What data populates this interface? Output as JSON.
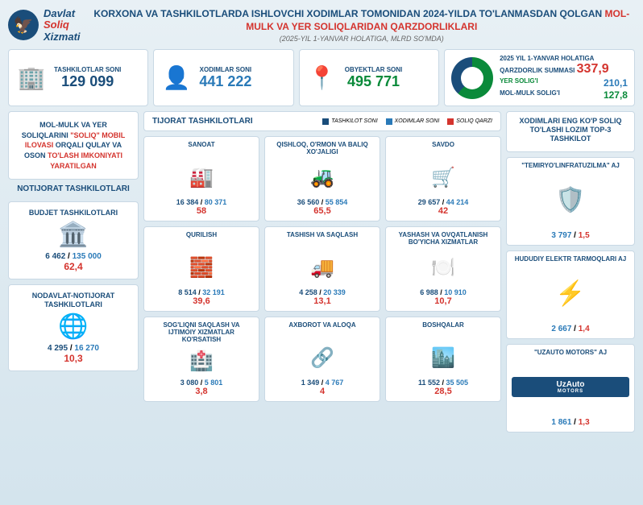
{
  "header": {
    "org_line1": "Davlat",
    "org_line2": "Soliq",
    "org_line3": "Xizmati",
    "title_part1": "KORXONA VA TASHKILOTLARDA ISHLOVCHI XODIMLAR TOMONIDAN 2024-YILDA TO'LANMASDAN QOLGAN ",
    "title_highlight": "MOL-MULK VA YER SOLIQLARIDAN QARZDORLIKLARI",
    "subtitle": "(2025-YIL 1-YANVAR HOLATIGA, MLRD SO'MDA)"
  },
  "top": {
    "c1": {
      "label": "TASHKILOTLAR SONI",
      "value": "129 099",
      "icon": "🏢"
    },
    "c2": {
      "label": "XODIMLAR SONI",
      "value": "441 222",
      "icon": "👤"
    },
    "c3": {
      "label": "OBYEKTLAR SONI",
      "value": "495 771",
      "icon": "📍"
    },
    "donut": {
      "label": "2025 YIL 1-YANVAR HOLATIGA QARZDORLIK SUMMASI",
      "total": "337,9",
      "item1_k": "YER SOLIG'I",
      "item1_v": "210,1",
      "item2_k": "MOL-MULK SOLIG'I",
      "item2_v": "127,8",
      "colors": {
        "slice1": "#0a8a3a",
        "slice2": "#1a4d7a"
      }
    }
  },
  "left": {
    "info": {
      "p1": "MOL-MULK VA YER SOLIQLARINI ",
      "p2": "\"SOLIQ\" MOBIL ILOVASI",
      "p3": " ORQALI QULAY VA OSON ",
      "p4": "TO'LASH IMKONIYATI YARATILGAN"
    },
    "sectitle": "NOTIJORAT TASHKILOTLARI",
    "b1": {
      "title": "BUDJET TASHKILOTLARI",
      "icon": "🏛️",
      "s1": "6 462",
      "s2": "135 000",
      "s3": "62,4"
    },
    "b2": {
      "title": "NODAVLAT-NOTIJORAT TASHKILOTLARI",
      "icon": "🌐",
      "s1": "4 295",
      "s2": "16 270",
      "s3": "10,3"
    }
  },
  "mid": {
    "title": "TIJORAT TASHKILOTLARI",
    "leg1": "TASHKILOT SONI",
    "leg2": "XODIMLAR SONI",
    "leg3": "SOLIQ QARZI",
    "legcolors": {
      "c1": "#1a4d7a",
      "c2": "#2a7ab8",
      "c3": "#d4342e"
    },
    "items": [
      {
        "n": "SANOAT",
        "i": "🏭",
        "a": "16 384",
        "b": "80 371",
        "c": "58"
      },
      {
        "n": "QISHLOQ, O'RMON VA BALIQ XO'JALIGI",
        "i": "🚜",
        "a": "36 560",
        "b": "55 854",
        "c": "65,5"
      },
      {
        "n": "SAVDO",
        "i": "🛒",
        "a": "29 657",
        "b": "44 214",
        "c": "42"
      },
      {
        "n": "QURILISH",
        "i": "🧱",
        "a": "8 514",
        "b": "32 191",
        "c": "39,6"
      },
      {
        "n": "TASHISH VA SAQLASH",
        "i": "🚚",
        "a": "4 258",
        "b": "20 339",
        "c": "13,1"
      },
      {
        "n": "YASHASH VA OVQATLANISH BO'YICHA XIZMATLAR",
        "i": "🍽️",
        "a": "6 988",
        "b": "10 910",
        "c": "10,7"
      },
      {
        "n": "SOG'LIQNI SAQLASH VA IJTIMOIY XIZMATLAR KO'RSATISH",
        "i": "🏥",
        "a": "3 080",
        "b": "5 801",
        "c": "3,8"
      },
      {
        "n": "AXBOROT VA ALOQA",
        "i": "🔗",
        "a": "1 349",
        "b": "4 767",
        "c": "4"
      },
      {
        "n": "BOSHQALAR",
        "i": "🏙️",
        "a": "11 552",
        "b": "35 505",
        "c": "28,5"
      }
    ]
  },
  "right": {
    "title": "XODIMLARI ENG KO'P SOLIQ TO'LASHI LOZIM TOP-3 TASHKILOT",
    "items": [
      {
        "n": "\"TEMIRYO'LINFRATUZILMA\" AJ",
        "i": "🛡️",
        "a": "3 797",
        "c": "1,5"
      },
      {
        "n": "HUDUDIY ELEKTR TARMOQLARI AJ",
        "i": "⚡",
        "a": "2 667",
        "c": "1,4"
      },
      {
        "n": "\"UZAUTO MOTORS\" AJ",
        "brand": "UzAuto",
        "brand2": "MOTORS",
        "a": "1 861",
        "c": "1,3"
      }
    ]
  }
}
